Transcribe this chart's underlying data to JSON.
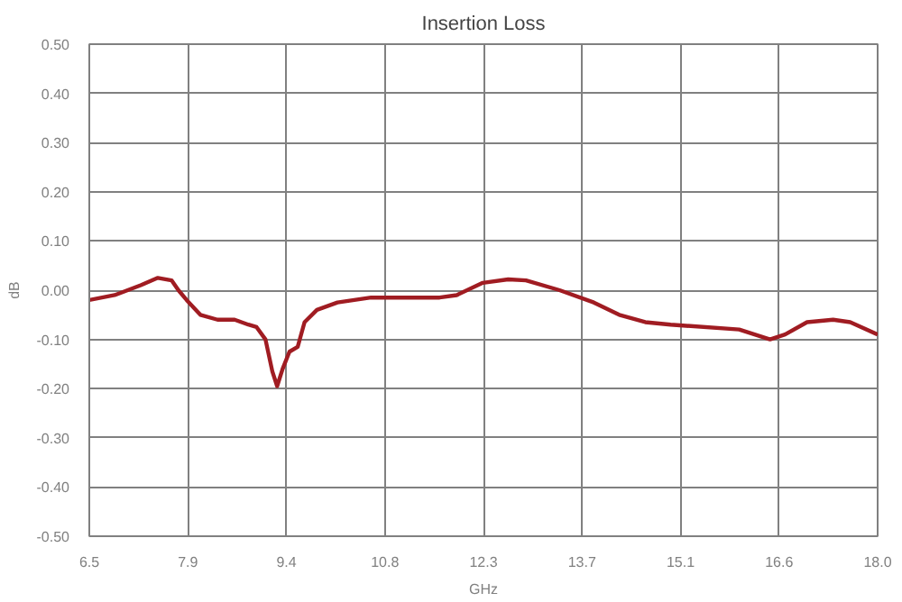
{
  "chart_data": {
    "type": "line",
    "title": "Insertion Loss",
    "xlabel": "GHz",
    "ylabel": "dB",
    "x": [
      6.5,
      6.87,
      7.25,
      7.5,
      7.7,
      7.8,
      7.92,
      8.12,
      8.37,
      8.62,
      8.82,
      8.94,
      9.07,
      9.17,
      9.24,
      9.32,
      9.42,
      9.54,
      9.64,
      9.82,
      10.12,
      10.61,
      11.61,
      11.86,
      12.24,
      12.61,
      12.87,
      13.36,
      13.86,
      14.23,
      14.61,
      14.98,
      15.98,
      16.43,
      16.65,
      16.97,
      17.35,
      17.6,
      18.0
    ],
    "series": [
      {
        "color": "#a01c22",
        "values": [
          -0.02,
          -0.01,
          0.01,
          0.025,
          0.02,
          0.0,
          -0.02,
          -0.05,
          -0.06,
          -0.06,
          -0.07,
          -0.075,
          -0.1,
          -0.165,
          -0.195,
          -0.16,
          -0.125,
          -0.115,
          -0.065,
          -0.04,
          -0.025,
          -0.015,
          -0.015,
          -0.01,
          0.015,
          0.022,
          0.02,
          0.0,
          -0.025,
          -0.05,
          -0.065,
          -0.07,
          -0.08,
          -0.1,
          -0.09,
          -0.065,
          -0.06,
          -0.065,
          -0.09
        ]
      }
    ],
    "xlim": [
      6.5,
      18.0
    ],
    "xticks": [
      {
        "value": 6.5,
        "label": "6.5"
      },
      {
        "value": 7.9375,
        "label": "7.9"
      },
      {
        "value": 9.375,
        "label": "9.4"
      },
      {
        "value": 10.8125,
        "label": "10.8"
      },
      {
        "value": 12.25,
        "label": "12.3"
      },
      {
        "value": 13.6875,
        "label": "13.7"
      },
      {
        "value": 15.125,
        "label": "15.1"
      },
      {
        "value": 16.5625,
        "label": "16.6"
      },
      {
        "value": 18.0,
        "label": "18.0"
      }
    ],
    "ylim": [
      -0.5,
      0.5
    ],
    "yticks": [
      {
        "value": -0.5,
        "label": "-0.50"
      },
      {
        "value": -0.4,
        "label": "-0.40"
      },
      {
        "value": -0.3,
        "label": "-0.30"
      },
      {
        "value": -0.2,
        "label": "-0.20"
      },
      {
        "value": -0.1,
        "label": "-0.10"
      },
      {
        "value": 0.0,
        "label": "0.00"
      },
      {
        "value": 0.1,
        "label": "0.10"
      },
      {
        "value": 0.2,
        "label": "0.20"
      },
      {
        "value": 0.3,
        "label": "0.30"
      },
      {
        "value": 0.4,
        "label": "0.40"
      },
      {
        "value": 0.5,
        "label": "0.50"
      }
    ],
    "grid": true,
    "line_style": "solid"
  }
}
